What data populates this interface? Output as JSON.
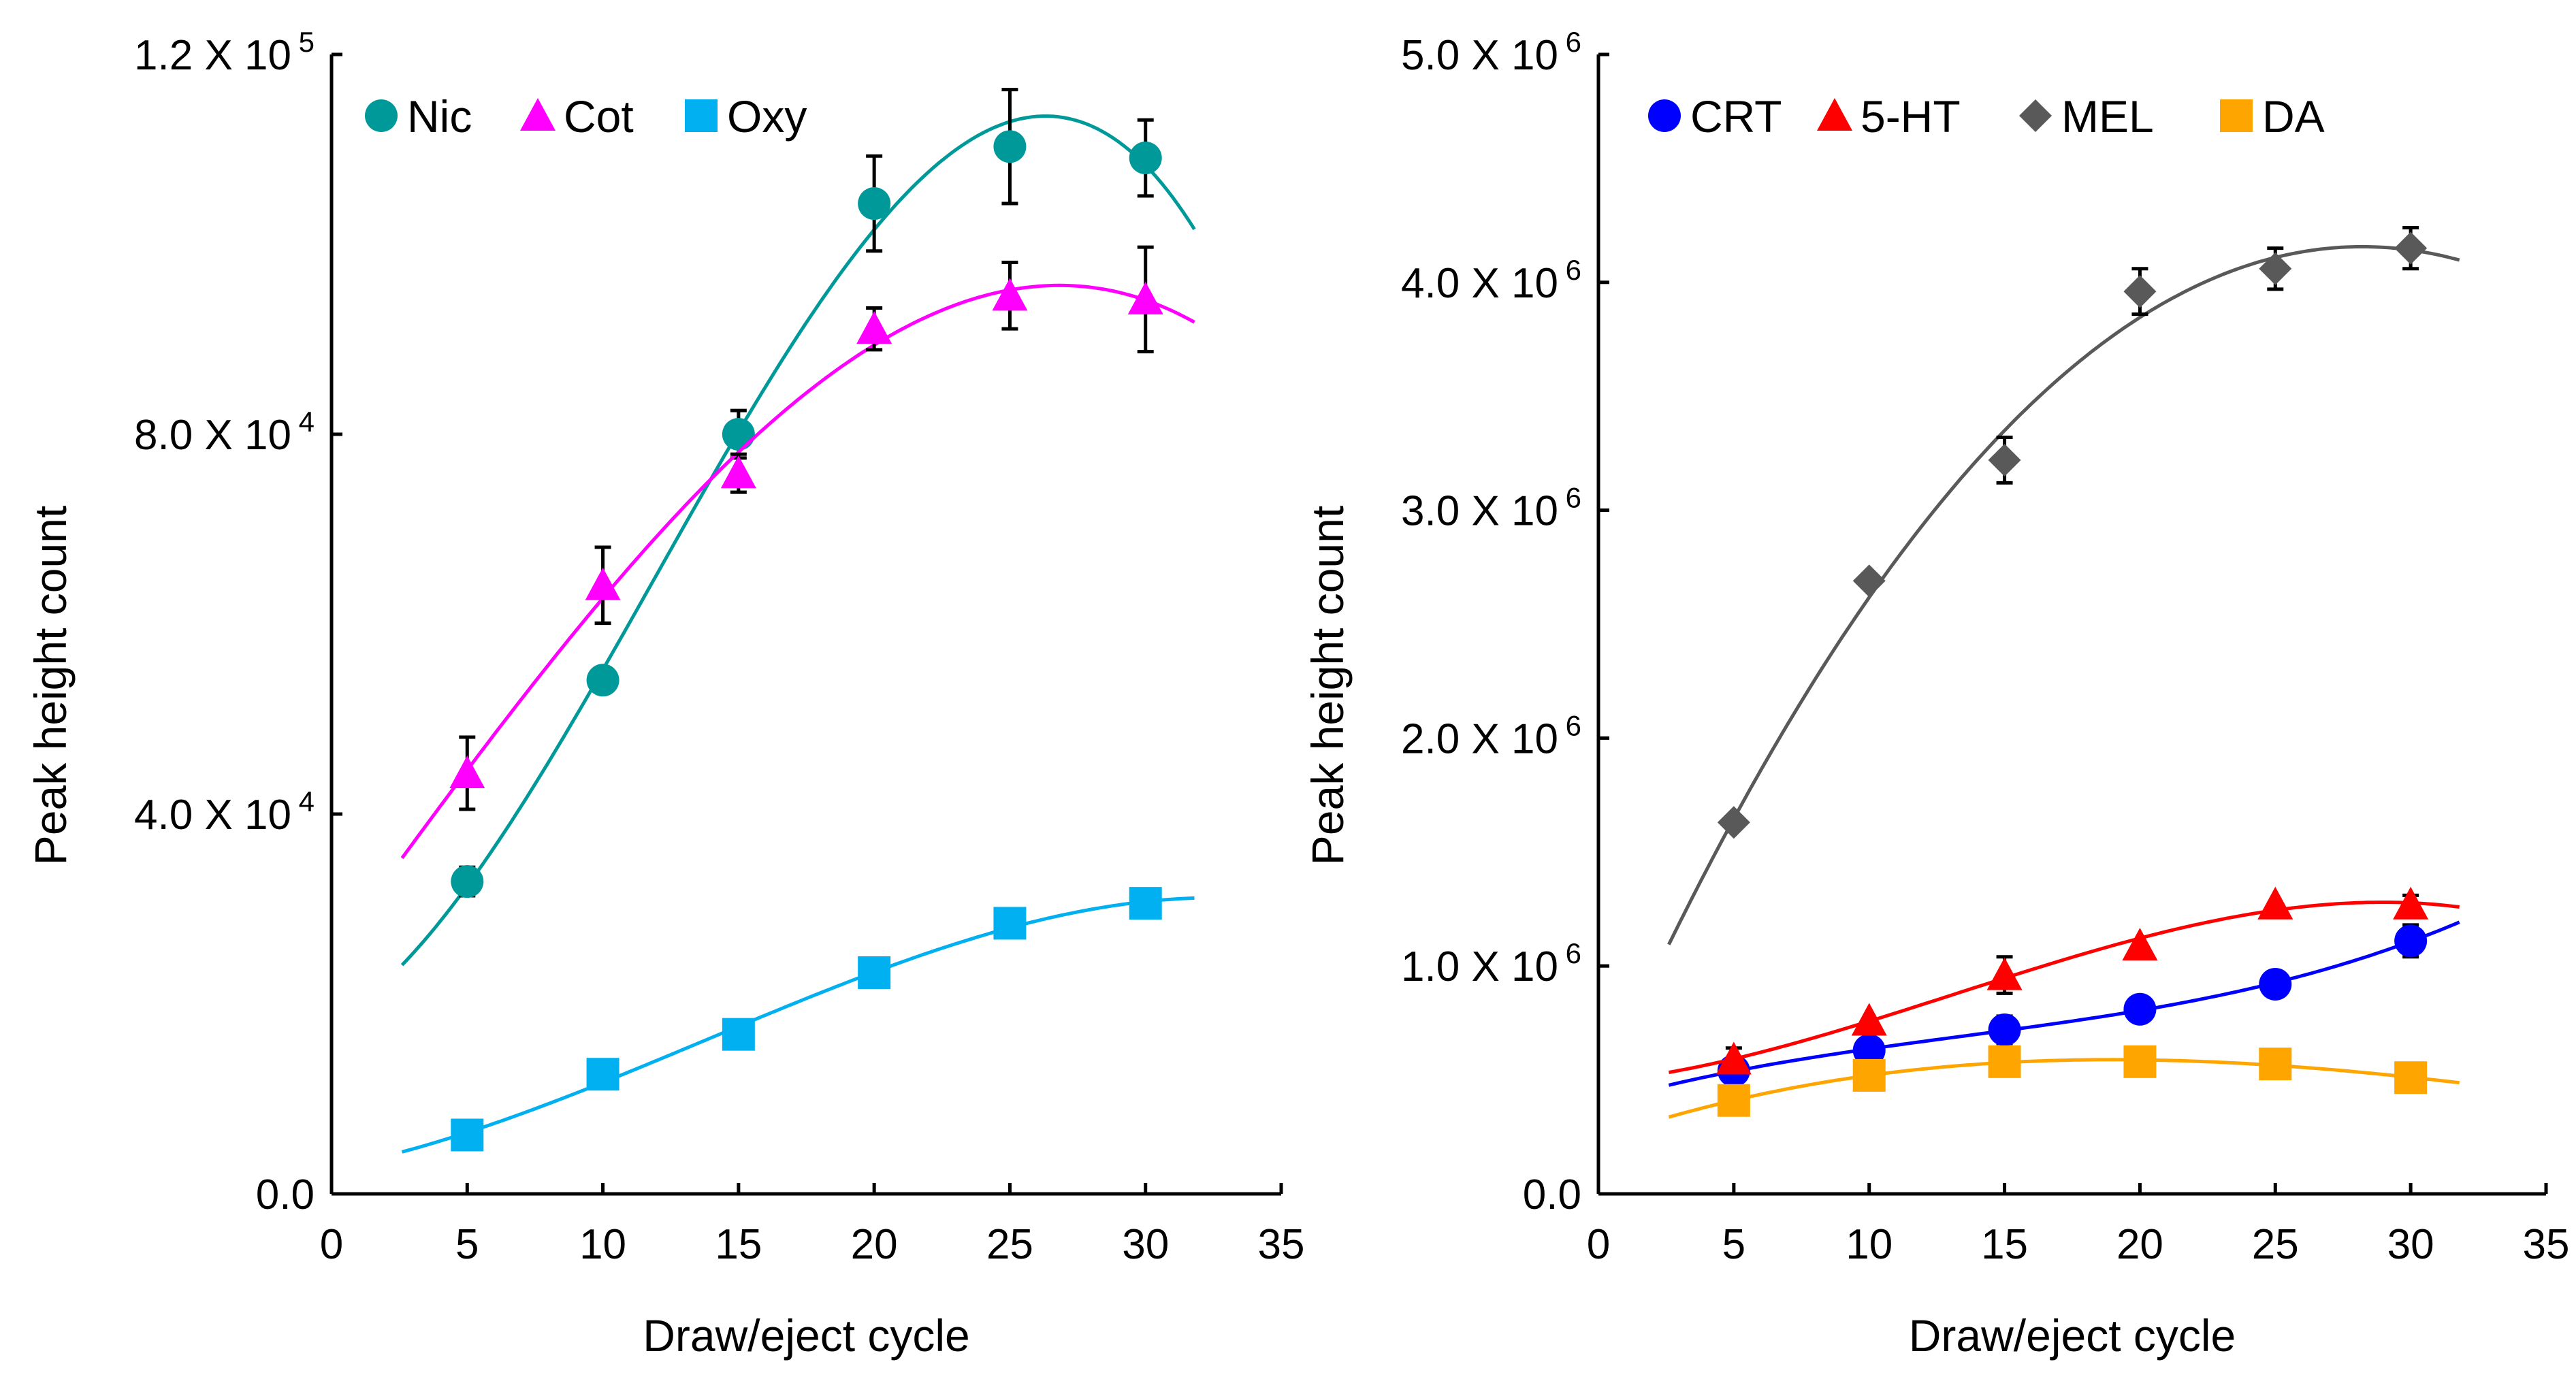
{
  "chart_data": [
    {
      "type": "scatter",
      "title": "",
      "xlabel": "Draw/eject cycle",
      "ylabel": "Peak height count",
      "xlim": [
        0,
        35
      ],
      "ylim": [
        0,
        120000
      ],
      "xticks": [
        "0",
        "5",
        "10",
        "15",
        "20",
        "25",
        "30",
        "35"
      ],
      "yticks": [
        {
          "value": 0,
          "label": "0.0",
          "exp": ""
        },
        {
          "value": 40000,
          "label": "4.0 X 10",
          "exp": "4"
        },
        {
          "value": 80000,
          "label": "8.0 X 10",
          "exp": "4"
        },
        {
          "value": 120000,
          "label": "1.2 X 10",
          "exp": "5"
        }
      ],
      "legend_position": "top-left",
      "grid": false,
      "x": [
        5,
        10,
        15,
        20,
        25,
        30
      ],
      "series": [
        {
          "name": "Nic",
          "marker": "circle",
          "color": "#009999",
          "values": [
            32900,
            54100,
            80000,
            104300,
            110300,
            109100
          ],
          "errors": [
            1500,
            0,
            2500,
            5000,
            6000,
            4000
          ]
        },
        {
          "name": "Cot",
          "marker": "triangle",
          "color": "#ff00ff",
          "values": [
            44300,
            64100,
            75900,
            91100,
            94600,
            94200
          ],
          "errors": [
            3800,
            4000,
            2000,
            2200,
            3500,
            5500
          ]
        },
        {
          "name": "Oxy",
          "marker": "square",
          "color": "#00b0f0",
          "values": [
            6200,
            12600,
            16800,
            23300,
            28500,
            30600
          ],
          "errors": [
            0,
            0,
            0,
            800,
            1000,
            0
          ]
        }
      ]
    },
    {
      "type": "scatter",
      "title": "",
      "xlabel": "Draw/eject cycle",
      "ylabel": "Peak height count",
      "xlim": [
        0,
        35
      ],
      "ylim": [
        0,
        5000000
      ],
      "xticks": [
        "0",
        "5",
        "10",
        "15",
        "20",
        "25",
        "30",
        "35"
      ],
      "yticks": [
        {
          "value": 0,
          "label": "0.0",
          "exp": ""
        },
        {
          "value": 1000000,
          "label": "1.0 X 10",
          "exp": "6"
        },
        {
          "value": 2000000,
          "label": "2.0 X 10",
          "exp": "6"
        },
        {
          "value": 3000000,
          "label": "3.0 X 10",
          "exp": "6"
        },
        {
          "value": 4000000,
          "label": "4.0 X 10",
          "exp": "6"
        },
        {
          "value": 5000000,
          "label": "5.0 X 10",
          "exp": "6"
        }
      ],
      "legend_position": "top-left",
      "grid": false,
      "x": [
        5,
        10,
        15,
        20,
        25,
        30
      ],
      "series": [
        {
          "name": "CRT",
          "marker": "circle",
          "color": "#0000ff",
          "values": [
            540000,
            630000,
            720000,
            810000,
            920000,
            1110000
          ],
          "errors": [
            0,
            0,
            60000,
            50000,
            0,
            70000
          ]
        },
        {
          "name": "5-HT",
          "marker": "triangle",
          "color": "#ff0000",
          "values": [
            590000,
            760000,
            960000,
            1090000,
            1270000,
            1270000
          ],
          "errors": [
            50000,
            0,
            80000,
            0,
            0,
            40000
          ]
        },
        {
          "name": "MEL",
          "marker": "diamond",
          "color": "#595959",
          "values": [
            1630000,
            2690000,
            3220000,
            3960000,
            4060000,
            4150000
          ],
          "errors": [
            0,
            0,
            100000,
            100000,
            90000,
            90000
          ]
        },
        {
          "name": "DA",
          "marker": "square",
          "color": "#ffa500",
          "values": [
            410000,
            520000,
            580000,
            580000,
            570000,
            510000
          ],
          "errors": [
            0,
            0,
            0,
            0,
            0,
            0
          ]
        }
      ]
    }
  ]
}
